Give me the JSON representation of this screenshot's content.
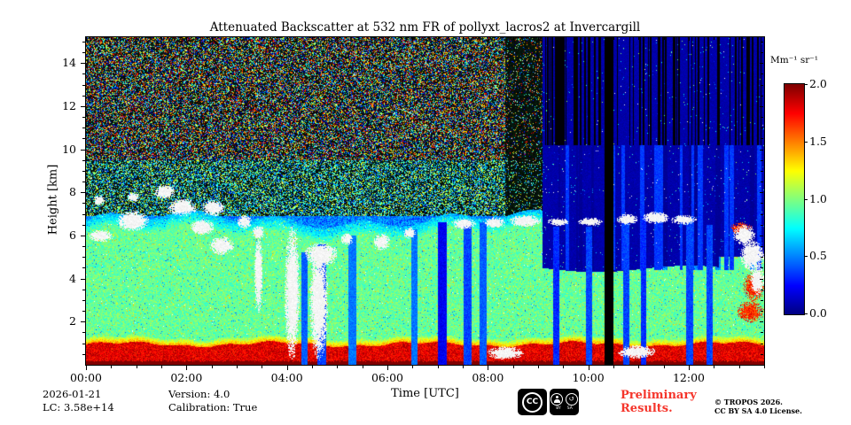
{
  "colors": {
    "preliminary": "#f5352b",
    "frame": "#000000",
    "background": "#ffffff"
  },
  "icons": {
    "sa_arrow": "↺"
  },
  "colorbar": {
    "label": "Mm⁻¹ sr⁻¹",
    "ticks": [
      0,
      0.5,
      1,
      1.5,
      2
    ]
  },
  "annotations": {
    "date": "2026-01-21",
    "lidar_constant": "LC: 3.58e+14",
    "version": "Version: 4.0",
    "calibration": "Calibration: True",
    "preliminary_line1": "Preliminary",
    "preliminary_line2": "Results.",
    "copyright_line1": "© TROPOS 2026.",
    "copyright_line2": "CC BY SA 4.0 License.",
    "cc": "CC",
    "by": "BY",
    "sa": "SA"
  },
  "chart_data": {
    "type": "heatmap",
    "title": "Attenuated Backscatter at 532 nm FR of pollyxt_lacros2 at Invercargill",
    "xlabel": "Time [UTC]",
    "ylabel": "Height [km]",
    "value_label": "Mm⁻¹ sr⁻¹",
    "colormap": "jet",
    "x_range_hours": [
      0,
      13.5
    ],
    "y_range_km": [
      0,
      15.2
    ],
    "value_range": [
      0,
      2
    ],
    "x_ticks": {
      "major_hours": [
        0,
        2,
        4,
        6,
        8,
        10,
        12
      ],
      "labels": [
        "00:00",
        "02:00",
        "04:00",
        "06:00",
        "08:00",
        "10:00",
        "12:00"
      ],
      "minor_step_hours": 0.5
    },
    "y_ticks": {
      "major_km": [
        2,
        4,
        6,
        8,
        10,
        12,
        14
      ],
      "minor_step_km": 0.5
    },
    "features": {
      "surface_dark_layer_top_km": 0.16,
      "boundary_layer": {
        "top_km": 0.95,
        "value": 1.8
      },
      "transition_layer": {
        "thickness_km": 0.32,
        "value_start": 1.45
      },
      "aerosol_green_layer": {
        "value": 0.95,
        "top_km_day": 6.75,
        "top_km_night": 4.45,
        "top_km_late": 5.0,
        "late_hour": 12.6
      },
      "noise_floor_km": 6.9,
      "daytime_noise_end_hour": 9.08,
      "dark_noise_start_hour": 8.35,
      "night_background_value": 0.05,
      "data_gap": {
        "start_hour": 10.33,
        "end_hour": 10.5
      },
      "range_boundary_km": 10.2,
      "night_stripes_count": 26,
      "dropout_lines": {
        "cluster": [
          9.15,
          10.3,
          34
        ],
        "scattered": [
          10.55,
          13.45,
          46
        ]
      },
      "attenuated_columns": [
        [
          4.28,
          4.42,
          5.2,
          0.35
        ],
        [
          4.6,
          4.78,
          5.6,
          0.3
        ],
        [
          5.22,
          5.38,
          6.0,
          0.4
        ],
        [
          6.48,
          6.6,
          6.3,
          0.4
        ],
        [
          7.0,
          7.18,
          6.6,
          0.15
        ],
        [
          7.52,
          7.68,
          6.6,
          0.3
        ],
        [
          7.84,
          7.98,
          6.6,
          0.35
        ],
        [
          9.3,
          9.42,
          6.4,
          0.25
        ],
        [
          9.95,
          10.08,
          6.4,
          0.3
        ],
        [
          10.7,
          10.82,
          6.8,
          0.3
        ],
        [
          11.05,
          11.16,
          6.9,
          0.25
        ],
        [
          11.95,
          12.08,
          6.8,
          0.3
        ],
        [
          12.35,
          12.48,
          6.5,
          0.3
        ]
      ],
      "clouds_white": [
        [
          0.05,
          0.55,
          5.7,
          6.25
        ],
        [
          0.15,
          0.38,
          7.4,
          7.85
        ],
        [
          0.6,
          1.25,
          6.2,
          7.15
        ],
        [
          0.82,
          1.06,
          7.55,
          8.0
        ],
        [
          1.35,
          1.78,
          7.7,
          8.35
        ],
        [
          1.62,
          2.22,
          6.9,
          7.7
        ],
        [
          2.08,
          2.55,
          6.0,
          6.75
        ],
        [
          2.3,
          2.76,
          6.9,
          7.65
        ],
        [
          2.45,
          2.95,
          5.1,
          5.95
        ],
        [
          3.02,
          3.3,
          6.3,
          6.95
        ],
        [
          3.3,
          3.56,
          5.85,
          6.45
        ],
        [
          3.35,
          3.52,
          2.4,
          6.0
        ],
        [
          3.95,
          4.26,
          0.2,
          6.45
        ],
        [
          4.45,
          4.82,
          0.2,
          5.6
        ],
        [
          4.35,
          5.02,
          4.6,
          5.65
        ],
        [
          5.08,
          5.32,
          5.55,
          6.1
        ],
        [
          5.72,
          6.06,
          5.3,
          6.1
        ],
        [
          6.32,
          6.56,
          5.85,
          6.4
        ],
        [
          7.28,
          7.76,
          6.3,
          6.8
        ],
        [
          7.9,
          8.36,
          6.35,
          6.85
        ],
        [
          8.42,
          9.06,
          6.4,
          6.95
        ],
        [
          7.98,
          8.72,
          0.25,
          0.85
        ],
        [
          9.18,
          9.62,
          6.45,
          6.8
        ],
        [
          9.78,
          10.3,
          6.45,
          6.82
        ],
        [
          10.55,
          11.0,
          6.5,
          7.0
        ],
        [
          11.08,
          11.62,
          6.55,
          7.1
        ],
        [
          11.64,
          12.16,
          6.5,
          6.95
        ],
        [
          10.58,
          11.35,
          0.3,
          0.9
        ],
        [
          12.88,
          13.32,
          5.55,
          6.5
        ],
        [
          13.02,
          13.5,
          4.35,
          5.8
        ],
        [
          13.22,
          13.5,
          3.25,
          4.6
        ]
      ],
      "clouds_orange": [
        [
          12.95,
          13.5,
          1.95,
          2.95
        ],
        [
          12.82,
          13.28,
          6.05,
          6.6
        ],
        [
          13.08,
          13.5,
          2.9,
          4.3
        ]
      ]
    }
  }
}
